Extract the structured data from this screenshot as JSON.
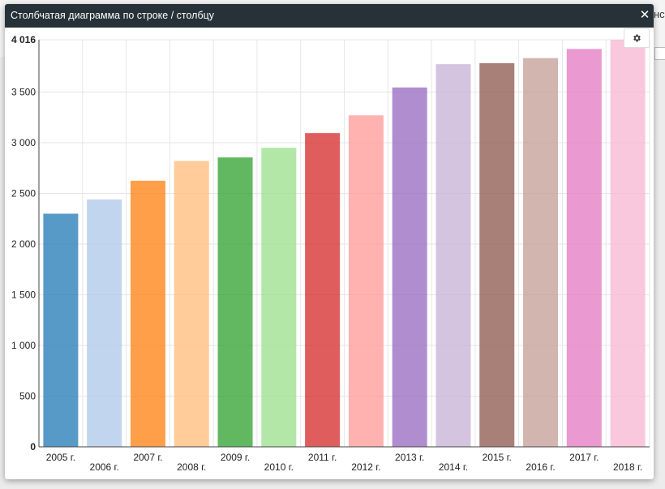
{
  "background": {
    "edge_text": "нсі"
  },
  "dialog": {
    "title": "Столбчатая диаграмма по строке / столбцу",
    "close_icon": "close-icon",
    "settings_icon": "gear-icon"
  },
  "chart_data": {
    "type": "bar",
    "categories": [
      "2005 г.",
      "2006 г.",
      "2007 г.",
      "2008 г.",
      "2009 г.",
      "2010 г.",
      "2011 г.",
      "2012 г.",
      "2013 г.",
      "2014 г.",
      "2015 г.",
      "2016 г.",
      "2017 г.",
      "2018 г."
    ],
    "values": [
      2300,
      2440,
      2625,
      2820,
      2855,
      2950,
      3095,
      3270,
      3545,
      3775,
      3785,
      3835,
      3925,
      4016
    ],
    "colors": [
      "#1f77b4",
      "#aec7e8",
      "#ff7f0e",
      "#ffbb78",
      "#2ca02c",
      "#98df8a",
      "#d62728",
      "#ff9896",
      "#9467bd",
      "#c5b0d5",
      "#8c564b",
      "#c49c94",
      "#e377c2",
      "#f7b6d2"
    ],
    "y_ticks": [
      {
        "value": 0,
        "label": "0"
      },
      {
        "value": 500,
        "label": "500"
      },
      {
        "value": 1000,
        "label": "1 000"
      },
      {
        "value": 1500,
        "label": "1 500"
      },
      {
        "value": 2000,
        "label": "2 000"
      },
      {
        "value": 2500,
        "label": "2 500"
      },
      {
        "value": 3000,
        "label": "3 000"
      },
      {
        "value": 3500,
        "label": "3 500"
      },
      {
        "value": 4016,
        "label": "4 016"
      }
    ],
    "ylim": [
      0,
      4016
    ],
    "grid": true,
    "title": "",
    "xlabel": "",
    "ylabel": ""
  }
}
